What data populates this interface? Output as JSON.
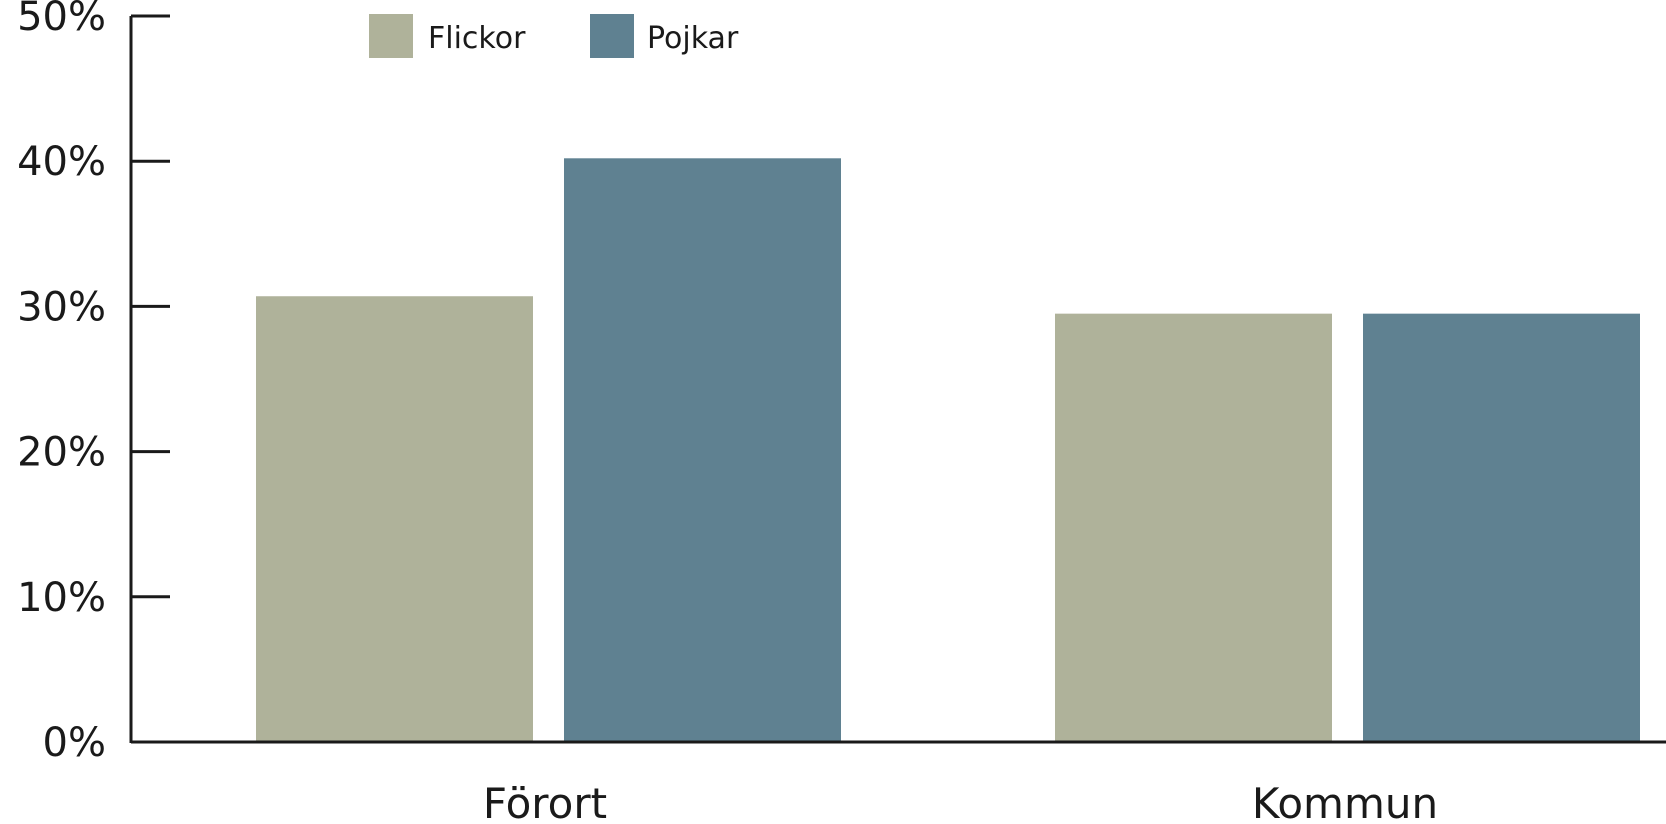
{
  "chart_data": {
    "type": "bar",
    "categories": [
      "Förort",
      "Kommun"
    ],
    "series": [
      {
        "name": "Flickor",
        "color": "#afb29a",
        "values": [
          30.7,
          29.5
        ]
      },
      {
        "name": "Pojkar",
        "color": "#5f8191",
        "values": [
          40.2,
          29.5
        ]
      }
    ],
    "ylim": [
      0,
      50
    ],
    "yticks": [
      "0%",
      "10%",
      "20%",
      "30%",
      "40%",
      "50%"
    ],
    "grid": false,
    "legend_position": "top-left"
  }
}
